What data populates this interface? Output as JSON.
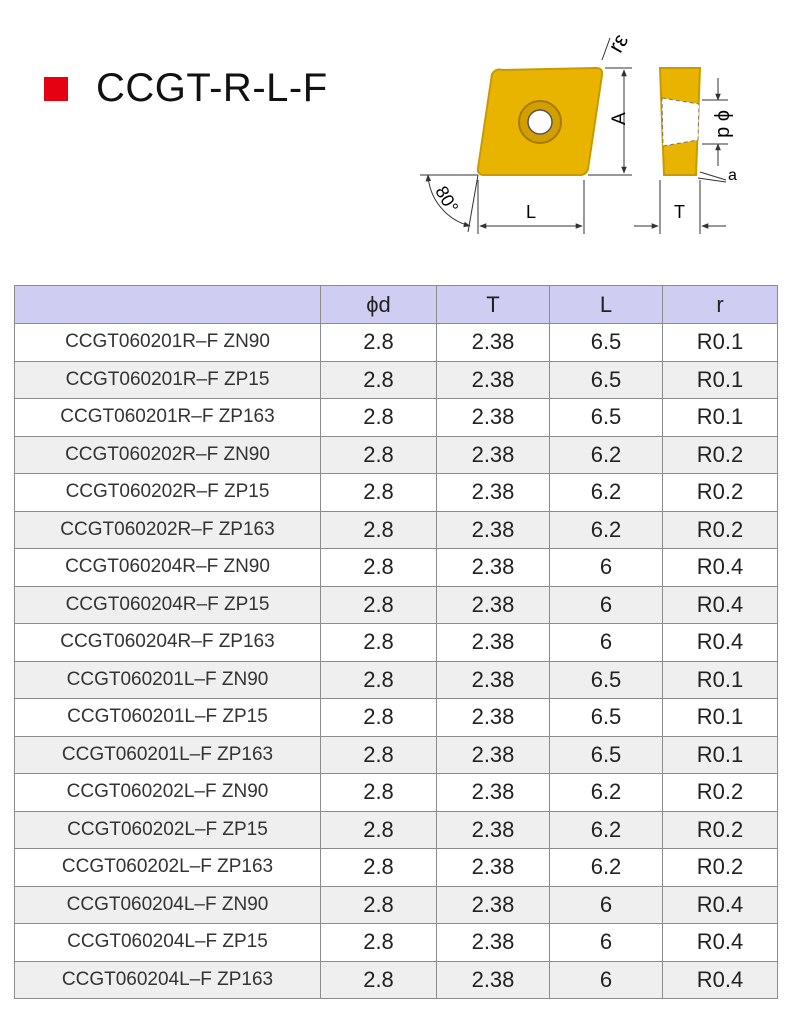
{
  "title": "CCGT-R-L-F",
  "diagram": {
    "labels": {
      "corner_radius": "rε",
      "width_a": "A",
      "angle": "80°",
      "length": "L",
      "hole": "ϕ d",
      "thickness": "T",
      "clearance": "a"
    },
    "colors": {
      "insert_fill": "#e8b400",
      "insert_edge": "#c99a00",
      "hole_fill": "#ffffff",
      "line": "#333333"
    }
  },
  "table": {
    "headers": [
      "",
      "ϕd",
      "T",
      "L",
      "r"
    ],
    "rows": [
      {
        "model": "CCGT060201R–F ZN90",
        "d": "2.8",
        "t": "2.38",
        "l": "6.5",
        "r": "R0.1"
      },
      {
        "model": "CCGT060201R–F ZP15",
        "d": "2.8",
        "t": "2.38",
        "l": "6.5",
        "r": "R0.1"
      },
      {
        "model": "CCGT060201R–F ZP163",
        "d": "2.8",
        "t": "2.38",
        "l": "6.5",
        "r": "R0.1"
      },
      {
        "model": "CCGT060202R–F ZN90",
        "d": "2.8",
        "t": "2.38",
        "l": "6.2",
        "r": "R0.2"
      },
      {
        "model": "CCGT060202R–F ZP15",
        "d": "2.8",
        "t": "2.38",
        "l": "6.2",
        "r": "R0.2"
      },
      {
        "model": "CCGT060202R–F ZP163",
        "d": "2.8",
        "t": "2.38",
        "l": "6.2",
        "r": "R0.2"
      },
      {
        "model": "CCGT060204R–F ZN90",
        "d": "2.8",
        "t": "2.38",
        "l": "6",
        "r": "R0.4"
      },
      {
        "model": "CCGT060204R–F ZP15",
        "d": "2.8",
        "t": "2.38",
        "l": "6",
        "r": "R0.4"
      },
      {
        "model": "CCGT060204R–F ZP163",
        "d": "2.8",
        "t": "2.38",
        "l": "6",
        "r": "R0.4"
      },
      {
        "model": "CCGT060201L–F ZN90",
        "d": "2.8",
        "t": "2.38",
        "l": "6.5",
        "r": "R0.1"
      },
      {
        "model": "CCGT060201L–F ZP15",
        "d": "2.8",
        "t": "2.38",
        "l": "6.5",
        "r": "R0.1"
      },
      {
        "model": "CCGT060201L–F ZP163",
        "d": "2.8",
        "t": "2.38",
        "l": "6.5",
        "r": "R0.1"
      },
      {
        "model": "CCGT060202L–F ZN90",
        "d": "2.8",
        "t": "2.38",
        "l": "6.2",
        "r": "R0.2"
      },
      {
        "model": "CCGT060202L–F ZP15",
        "d": "2.8",
        "t": "2.38",
        "l": "6.2",
        "r": "R0.2"
      },
      {
        "model": "CCGT060202L–F ZP163",
        "d": "2.8",
        "t": "2.38",
        "l": "6.2",
        "r": "R0.2"
      },
      {
        "model": "CCGT060204L–F ZN90",
        "d": "2.8",
        "t": "2.38",
        "l": "6",
        "r": "R0.4"
      },
      {
        "model": "CCGT060204L–F ZP15",
        "d": "2.8",
        "t": "2.38",
        "l": "6",
        "r": "R0.4"
      },
      {
        "model": "CCGT060204L–F ZP163",
        "d": "2.8",
        "t": "2.38",
        "l": "6",
        "r": "R0.4"
      }
    ]
  }
}
